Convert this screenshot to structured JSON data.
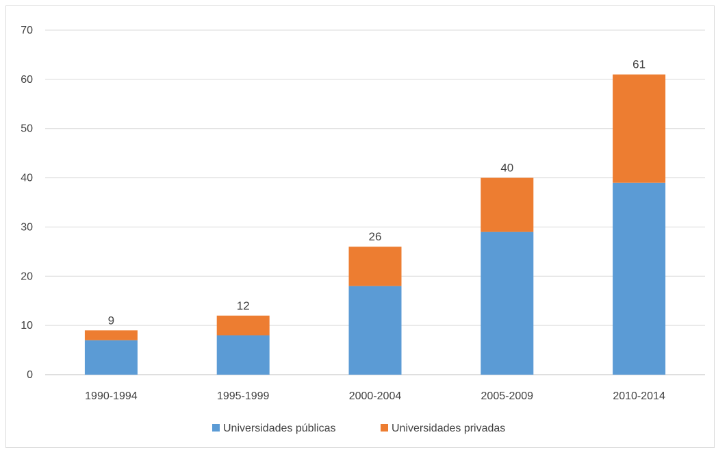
{
  "chart_data": {
    "type": "bar",
    "stacked": true,
    "categories": [
      "1990-1994",
      "1995-1999",
      "2000-2004",
      "2005-2009",
      "2010-2014"
    ],
    "series": [
      {
        "name": "Universidades públicas",
        "values": [
          7,
          8,
          18,
          29,
          39
        ],
        "color": "#5b9bd5"
      },
      {
        "name": "Universidades privadas",
        "values": [
          2,
          4,
          8,
          11,
          22
        ],
        "color": "#ed7d31"
      }
    ],
    "totals": [
      9,
      12,
      26,
      40,
      61
    ],
    "yticks": [
      0,
      10,
      20,
      30,
      40,
      50,
      60,
      70
    ],
    "ylim": [
      0,
      70
    ],
    "grid": true,
    "legend_position": "bottom",
    "title": "",
    "xlabel": "",
    "ylabel": ""
  }
}
